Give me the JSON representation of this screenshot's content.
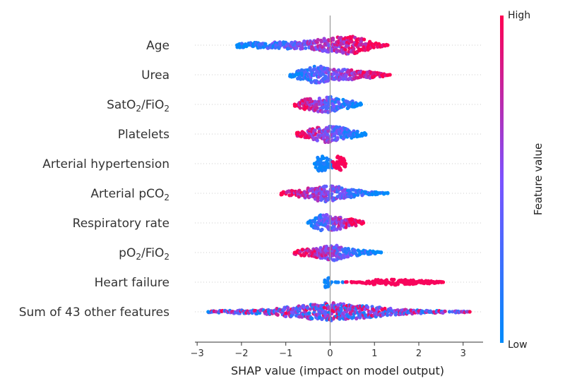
{
  "chart_data": {
    "type": "scatter",
    "subtype": "shap-beeswarm",
    "title": "",
    "xlabel": "SHAP value (impact on model output)",
    "xlim": [
      -3.05,
      3.45
    ],
    "xticks": [
      -3,
      -2,
      -1,
      0,
      1,
      2,
      3
    ],
    "xtick_labels": [
      "−3",
      "−2",
      "−1",
      "0",
      "1",
      "2",
      "3"
    ],
    "grid": false,
    "colorbar": {
      "label": "Feature value",
      "high_label": "High",
      "low_label": "Low",
      "low_color": "#008bfb",
      "mid_color": "#7c52ff",
      "high_color": "#ff0052"
    },
    "features": [
      {
        "name": "Age",
        "sub": "",
        "tail": "",
        "min": -2.1,
        "max": 1.3,
        "spread": [
          [
            -2.1,
            0.25
          ],
          [
            -1.5,
            0.32
          ],
          [
            -0.9,
            0.4
          ],
          [
            -0.3,
            0.6
          ],
          [
            0,
            0.8
          ],
          [
            0.45,
            1.0
          ],
          [
            0.8,
            0.6
          ],
          [
            1.0,
            0.25
          ],
          [
            1.3,
            0.1
          ]
        ],
        "color": "increasing"
      },
      {
        "name": "Urea",
        "sub": "",
        "tail": "",
        "min": -0.9,
        "max": 1.35,
        "spread": [
          [
            -0.9,
            0.2
          ],
          [
            -0.6,
            0.6
          ],
          [
            -0.3,
            1.0
          ],
          [
            0,
            0.7
          ],
          [
            0.3,
            0.6
          ],
          [
            0.7,
            0.45
          ],
          [
            1.0,
            0.3
          ],
          [
            1.35,
            0.1
          ]
        ],
        "color": "increasing"
      },
      {
        "name": "SatO",
        "sub": "2",
        "tail": "/FiO",
        "sub2": "2",
        "min": -0.8,
        "max": 0.7,
        "spread": [
          [
            -0.8,
            0.2
          ],
          [
            -0.5,
            0.7
          ],
          [
            -0.2,
            0.8
          ],
          [
            0,
            0.9
          ],
          [
            0.2,
            0.6
          ],
          [
            0.5,
            0.35
          ],
          [
            0.7,
            0.15
          ]
        ],
        "color": "decreasing"
      },
      {
        "name": "Platelets",
        "sub": "",
        "tail": "",
        "min": -0.75,
        "max": 0.8,
        "spread": [
          [
            -0.75,
            0.2
          ],
          [
            -0.4,
            0.6
          ],
          [
            -0.1,
            0.95
          ],
          [
            0.2,
            0.8
          ],
          [
            0.5,
            0.4
          ],
          [
            0.8,
            0.15
          ]
        ],
        "color": "decreasing"
      },
      {
        "name": "Arterial hypertension",
        "sub": "",
        "tail": "",
        "min": -0.35,
        "max": 0.35,
        "spread": [
          [
            -0.35,
            0.5
          ],
          [
            -0.2,
            1.0
          ],
          [
            -0.05,
            0.5
          ],
          [
            0.1,
            0.4
          ],
          [
            0.2,
            1.0
          ],
          [
            0.35,
            0.3
          ]
        ],
        "color": "binary"
      },
      {
        "name": "Arterial pCO",
        "sub": "2",
        "tail": "",
        "min": -1.1,
        "max": 1.3,
        "spread": [
          [
            -1.1,
            0.15
          ],
          [
            -0.6,
            0.45
          ],
          [
            -0.15,
            0.95
          ],
          [
            0.2,
            0.7
          ],
          [
            0.6,
            0.35
          ],
          [
            1.0,
            0.15
          ],
          [
            1.3,
            0.08
          ]
        ],
        "color": "decreasing"
      },
      {
        "name": "Respiratory rate",
        "sub": "",
        "tail": "",
        "min": -0.5,
        "max": 0.75,
        "spread": [
          [
            -0.5,
            0.2
          ],
          [
            -0.2,
            0.95
          ],
          [
            0.1,
            0.8
          ],
          [
            0.4,
            0.5
          ],
          [
            0.75,
            0.15
          ]
        ],
        "color": "increasing"
      },
      {
        "name": "pO",
        "sub": "2",
        "tail": "/FiO",
        "sub2": "2",
        "min": -0.8,
        "max": 1.15,
        "spread": [
          [
            -0.8,
            0.2
          ],
          [
            -0.4,
            0.5
          ],
          [
            -0.1,
            0.7
          ],
          [
            0.1,
            0.85
          ],
          [
            0.4,
            0.45
          ],
          [
            0.8,
            0.2
          ],
          [
            1.15,
            0.08
          ]
        ],
        "color": "decreasing"
      },
      {
        "name": "Heart failure",
        "sub": "",
        "tail": "",
        "min": -0.12,
        "max": 2.55,
        "spread": [
          [
            -0.12,
            0.6
          ],
          [
            -0.05,
            0.6
          ],
          [
            0.05,
            0.0
          ],
          [
            0.65,
            0.05
          ],
          [
            0.9,
            0.25
          ],
          [
            1.5,
            0.3
          ],
          [
            2.1,
            0.2
          ],
          [
            2.55,
            0.05
          ]
        ],
        "color": "binary-hf"
      },
      {
        "name": "Sum of 43 other features",
        "sub": "",
        "tail": "",
        "min": -2.75,
        "max": 3.15,
        "spread": [
          [
            -2.75,
            0.08
          ],
          [
            -1.5,
            0.25
          ],
          [
            -0.6,
            0.7
          ],
          [
            0,
            1.0
          ],
          [
            0.7,
            0.7
          ],
          [
            1.5,
            0.3
          ],
          [
            2.4,
            0.12
          ],
          [
            3.15,
            0.05
          ]
        ],
        "color": "mixed"
      }
    ]
  }
}
